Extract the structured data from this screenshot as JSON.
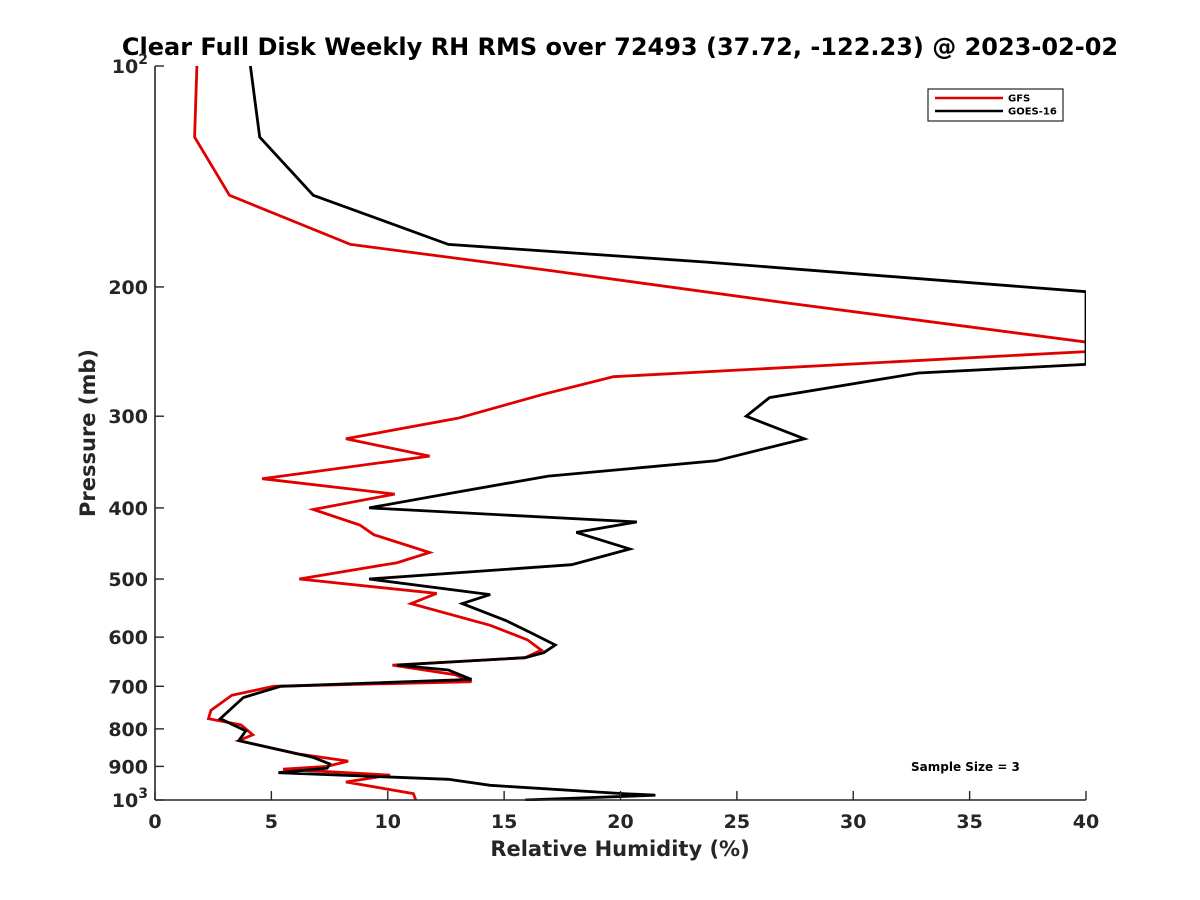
{
  "chart_data": {
    "type": "line",
    "title": "Clear Full Disk Weekly RH RMS over 72493 (37.72, -122.23) @ 2023-02-02",
    "xlabel": "Relative Humidity (%)",
    "ylabel": "Pressure (mb)",
    "xlim": [
      0,
      40
    ],
    "ylim": [
      100,
      1000
    ],
    "y_scale": "log",
    "y_reversed": true,
    "grid": false,
    "legend_position": "top-right",
    "annotation": "Sample Size = 3",
    "x_ticks": [
      "0",
      "5",
      "10",
      "15",
      "20",
      "25",
      "30",
      "35",
      "40"
    ],
    "y_ticks": [
      {
        "value": 100,
        "base": "10",
        "exp": "2"
      },
      {
        "value": 200,
        "label": "200"
      },
      {
        "value": 300,
        "label": "300"
      },
      {
        "value": 400,
        "label": "400"
      },
      {
        "value": 500,
        "label": "500"
      },
      {
        "value": 600,
        "label": "600"
      },
      {
        "value": 700,
        "label": "700"
      },
      {
        "value": 800,
        "label": "800"
      },
      {
        "value": 900,
        "label": "900"
      },
      {
        "value": 1000,
        "base": "10",
        "exp": "3"
      }
    ],
    "series": [
      {
        "name": "GFS",
        "color": "#e00000",
        "points": [
          [
            1.8,
            100
          ],
          [
            1.7,
            125
          ],
          [
            3.2,
            150
          ],
          [
            8.4,
            175
          ],
          [
            17,
            190
          ],
          [
            27,
            210
          ],
          [
            41,
            240
          ],
          [
            40,
            245
          ],
          [
            19.7,
            265
          ],
          [
            16.7,
            280
          ],
          [
            13,
            302
          ],
          [
            8.2,
            322
          ],
          [
            11.8,
            340
          ],
          [
            4.6,
            365
          ],
          [
            10.3,
            383
          ],
          [
            6.8,
            402
          ],
          [
            8.8,
            422
          ],
          [
            9.4,
            435
          ],
          [
            11.8,
            460
          ],
          [
            10.4,
            475
          ],
          [
            6.2,
            500
          ],
          [
            12.1,
            523
          ],
          [
            11,
            540
          ],
          [
            14.4,
            578
          ],
          [
            16,
            605
          ],
          [
            16.6,
            625
          ],
          [
            15.9,
            640
          ],
          [
            10.2,
            655
          ],
          [
            12.9,
            675
          ],
          [
            13.6,
            690
          ],
          [
            5.1,
            700
          ],
          [
            3.3,
            720
          ],
          [
            2.4,
            755
          ],
          [
            2.3,
            775
          ],
          [
            3.7,
            790
          ],
          [
            4.2,
            815
          ],
          [
            3.6,
            830
          ],
          [
            6.1,
            865
          ],
          [
            8.3,
            885
          ],
          [
            7.4,
            900
          ],
          [
            5.5,
            908
          ],
          [
            10.1,
            925
          ],
          [
            8.2,
            945
          ],
          [
            11.1,
            980
          ],
          [
            11.2,
            1000
          ]
        ]
      },
      {
        "name": "GOES-16",
        "color": "#000000",
        "points": [
          [
            4.1,
            100
          ],
          [
            4.5,
            125
          ],
          [
            6.8,
            150
          ],
          [
            12.6,
            175
          ],
          [
            23.7,
            185
          ],
          [
            40,
            203
          ],
          [
            40,
            255
          ],
          [
            32.8,
            262
          ],
          [
            26.4,
            283
          ],
          [
            25.4,
            300
          ],
          [
            27.9,
            322
          ],
          [
            24.1,
            345
          ],
          [
            16.9,
            362
          ],
          [
            12.7,
            382
          ],
          [
            9.2,
            400
          ],
          [
            20.7,
            418
          ],
          [
            18.1,
            432
          ],
          [
            20.4,
            455
          ],
          [
            17.9,
            478
          ],
          [
            9.2,
            500
          ],
          [
            14.4,
            525
          ],
          [
            13.2,
            540
          ],
          [
            15.1,
            570
          ],
          [
            16.3,
            595
          ],
          [
            17.2,
            615
          ],
          [
            16.7,
            630
          ],
          [
            15.9,
            640
          ],
          [
            10.4,
            655
          ],
          [
            12.6,
            665
          ],
          [
            13.6,
            685
          ],
          [
            5.4,
            700
          ],
          [
            3.8,
            725
          ],
          [
            2.8,
            775
          ],
          [
            3.9,
            805
          ],
          [
            3.6,
            830
          ],
          [
            6.8,
            875
          ],
          [
            7.5,
            893
          ],
          [
            7.4,
            905
          ],
          [
            5.3,
            918
          ],
          [
            12.6,
            937
          ],
          [
            14.4,
            955
          ],
          [
            20.1,
            980
          ],
          [
            21.5,
            985
          ],
          [
            15.9,
            1000
          ]
        ]
      }
    ]
  }
}
